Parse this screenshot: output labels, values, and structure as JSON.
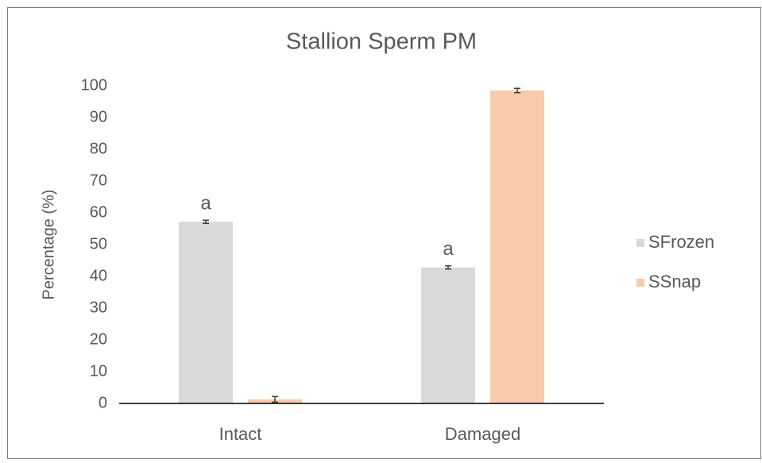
{
  "chart_data": {
    "type": "bar",
    "title": "Stallion Sperm PM",
    "y_label": "Percentage (%)",
    "categories": [
      "Intact",
      "Damaged"
    ],
    "series": [
      {
        "name": "SFrozen",
        "color": "#d9d9d9",
        "values": [
          57.2,
          42.8
        ],
        "errors": [
          0.5,
          0.5
        ],
        "labels": [
          "a",
          "a"
        ]
      },
      {
        "name": "SSnap",
        "color": "#f8cbad",
        "values": [
          1.3,
          98.5
        ],
        "errors": [
          0.9,
          0.7
        ]
      }
    ],
    "ylim": [
      0,
      100
    ],
    "yticks": [
      0,
      10,
      20,
      30,
      40,
      50,
      60,
      70,
      80,
      90,
      100
    ],
    "grid": false,
    "legend": "right"
  }
}
